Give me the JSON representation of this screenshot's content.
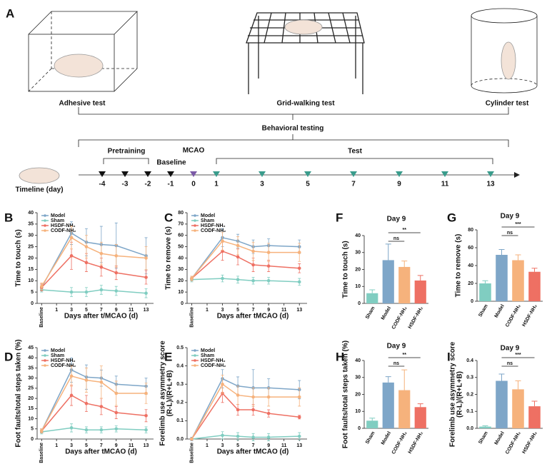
{
  "panel_a": {
    "label": "A",
    "tests": [
      "Adhesive test",
      "Grid-walking test",
      "Cylinder test"
    ],
    "behavioral": "Behavioral testing",
    "pretraining": "Pretraining",
    "baseline": "Baseline",
    "mcao": "MCAO",
    "test": "Test",
    "timeline_label": "Timeline (day)",
    "days": [
      -4,
      -3,
      -2,
      -1,
      0,
      1,
      3,
      5,
      7,
      9,
      11,
      13
    ]
  },
  "chart_data": [
    {
      "type": "line",
      "panel": "B",
      "ylabel": [
        "Time to touch (s)"
      ],
      "xlabel": "Days after t/MCAO (d)",
      "legend": "upper left",
      "x": [
        -1,
        3,
        5,
        7,
        9,
        13
      ],
      "xlim": [
        -1.6,
        14
      ],
      "xticks": [
        {
          "value": -1,
          "label": "Baseline"
        },
        1,
        3,
        5,
        7,
        9,
        11,
        13
      ],
      "ylim": [
        0,
        40
      ],
      "yticks": [
        0,
        5,
        10,
        15,
        20,
        25,
        30,
        35,
        40
      ],
      "series": [
        {
          "name": "Model",
          "color": "#7ea6c8",
          "values": [
            7,
            31,
            27,
            26,
            25.5,
            21
          ],
          "errors": [
            1.5,
            5,
            6,
            8,
            10,
            8
          ]
        },
        {
          "name": "Sham",
          "color": "#80cdc1",
          "values": [
            6,
            5,
            5,
            6,
            5.5,
            4.5
          ],
          "errors": [
            1,
            2,
            2,
            2,
            2,
            2
          ]
        },
        {
          "name": "HSDF-NH₂",
          "color": "#ee7063",
          "values": [
            7,
            21,
            18,
            16,
            13.5,
            11.5
          ],
          "errors": [
            1.5,
            6,
            4,
            4,
            3,
            3
          ]
        },
        {
          "name": "CODF-NH₂",
          "color": "#f6b27c",
          "values": [
            7.5,
            29,
            25,
            22,
            21,
            20
          ],
          "errors": [
            1.5,
            5,
            5,
            5,
            5,
            5
          ]
        }
      ]
    },
    {
      "type": "line",
      "panel": "C",
      "ylabel": [
        "Time to remove (s)"
      ],
      "xlabel": "Days after tMCAO (d)",
      "legend": "upper left",
      "x": [
        -1,
        3,
        5,
        7,
        9,
        13
      ],
      "xlim": [
        -1.6,
        14
      ],
      "xticks": [
        {
          "value": -1,
          "label": "Baseline"
        },
        1,
        3,
        5,
        7,
        9,
        11,
        13
      ],
      "ylim": [
        0,
        80
      ],
      "yticks": [
        0,
        10,
        20,
        30,
        40,
        50,
        60,
        70,
        80
      ],
      "series": [
        {
          "name": "Model",
          "color": "#7ea6c8",
          "values": [
            22,
            58,
            55,
            50,
            51,
            50
          ],
          "errors": [
            2,
            8,
            6,
            6,
            6,
            6
          ]
        },
        {
          "name": "Sham",
          "color": "#80cdc1",
          "values": [
            21,
            22,
            21,
            20,
            20,
            19
          ],
          "errors": [
            2,
            3,
            3,
            3,
            3,
            3
          ]
        },
        {
          "name": "HSDF-NH₂",
          "color": "#ee7063",
          "values": [
            22,
            46,
            41,
            34,
            33,
            31
          ],
          "errors": [
            2,
            8,
            7,
            6,
            5,
            4
          ]
        },
        {
          "name": "CODF-NH₂",
          "color": "#f6b27c",
          "values": [
            22,
            55,
            51,
            46,
            45,
            45
          ],
          "errors": [
            2,
            8,
            8,
            8,
            8,
            8
          ]
        }
      ]
    },
    {
      "type": "line",
      "panel": "D",
      "ylabel": [
        "Foot faults/total steps taken (%)"
      ],
      "xlabel": "Days after tMCAO (d)",
      "legend": "upper left",
      "x": [
        -1,
        3,
        5,
        7,
        9,
        13
      ],
      "xlim": [
        -1.6,
        14
      ],
      "xticks": [
        {
          "value": -1,
          "label": "Baseline"
        },
        1,
        3,
        5,
        7,
        9,
        11,
        13
      ],
      "ylim": [
        0,
        45
      ],
      "yticks": [
        0,
        5,
        10,
        15,
        20,
        25,
        30,
        35,
        40,
        45
      ],
      "series": [
        {
          "name": "Model",
          "color": "#7ea6c8",
          "values": [
            4,
            34,
            30.5,
            30,
            27,
            26
          ],
          "errors": [
            1,
            6,
            6,
            4,
            4,
            4
          ]
        },
        {
          "name": "Sham",
          "color": "#80cdc1",
          "values": [
            3.5,
            5.5,
            4.5,
            4.5,
            5,
            4.5
          ],
          "errors": [
            1,
            2,
            1.5,
            1.5,
            1.5,
            1.5
          ]
        },
        {
          "name": "HSDF-NH₂",
          "color": "#ee7063",
          "values": [
            4,
            21.5,
            17.5,
            16,
            13,
            11.5
          ],
          "errors": [
            1,
            5,
            4,
            4,
            3,
            3
          ]
        },
        {
          "name": "CODF-NH₂",
          "color": "#f6b27c",
          "values": [
            4,
            31,
            29,
            28,
            22.5,
            22.5
          ],
          "errors": [
            1,
            5,
            6,
            8,
            6,
            5
          ]
        }
      ]
    },
    {
      "type": "line",
      "panel": "E",
      "ylabel": [
        "Forelimb use asymmetry score",
        "(R-L)/(R+L+B)"
      ],
      "xlabel": "Days after tMCAO (d)",
      "legend": "upper left",
      "x": [
        -1,
        3,
        5,
        7,
        9,
        13
      ],
      "xlim": [
        -1.6,
        14
      ],
      "xticks": [
        {
          "value": -1,
          "label": "Baseline"
        },
        1,
        3,
        5,
        7,
        9,
        11,
        13
      ],
      "ylim": [
        0,
        0.5
      ],
      "yticks": [
        {
          "value": 0,
          "label": "0.0"
        },
        0.1,
        0.2,
        0.3,
        0.4,
        0.5
      ],
      "series": [
        {
          "name": "Model",
          "color": "#7ea6c8",
          "values": [
            0,
            0.33,
            0.29,
            0.28,
            0.28,
            0.27
          ],
          "errors": [
            0.01,
            0.05,
            0.05,
            0.1,
            0.05,
            0.05
          ]
        },
        {
          "name": "Sham",
          "color": "#80cdc1",
          "values": [
            0,
            0.02,
            0.015,
            0.01,
            0.01,
            0.015
          ],
          "errors": [
            0.005,
            0.02,
            0.02,
            0.02,
            0.02,
            0.02
          ]
        },
        {
          "name": "HSDF-NH₂",
          "color": "#ee7063",
          "values": [
            0,
            0.25,
            0.16,
            0.16,
            0.14,
            0.12
          ],
          "errors": [
            0.005,
            0.05,
            0.03,
            0.03,
            0.02,
            0.01
          ]
        },
        {
          "name": "CODF-NH₂",
          "color": "#f6b27c",
          "values": [
            0,
            0.3,
            0.24,
            0.23,
            0.23,
            0.23
          ],
          "errors": [
            0.005,
            0.05,
            0.05,
            0.05,
            0.05,
            0.05
          ]
        }
      ]
    },
    {
      "type": "bar",
      "panel": "F",
      "title": "Day 9",
      "ylabel": [
        "Time to touch (s)"
      ],
      "categories": [
        "Sham",
        "Model",
        "CODF-NH₂",
        "HSDF-NH₂"
      ],
      "colors": [
        "#80cdc1",
        "#7ea6c8",
        "#f6b27c",
        "#ee7063"
      ],
      "values": [
        6,
        25.5,
        21.5,
        13.5
      ],
      "errors": [
        2,
        9.5,
        3.5,
        3
      ],
      "ylim": [
        0,
        40
      ],
      "yticks": [
        0,
        10,
        20,
        30,
        40
      ],
      "annotations": [
        "ns",
        "**"
      ]
    },
    {
      "type": "bar",
      "panel": "G",
      "title": "Day 9",
      "ylabel": [
        "Time to remove (s)"
      ],
      "categories": [
        "Sham",
        "Model",
        "CODF-NH₂",
        "HSDF-NH₂"
      ],
      "colors": [
        "#80cdc1",
        "#7ea6c8",
        "#f6b27c",
        "#ee7063"
      ],
      "values": [
        20,
        52,
        46,
        33
      ],
      "errors": [
        3,
        6,
        6,
        4
      ],
      "ylim": [
        0,
        80
      ],
      "yticks": [
        0,
        20,
        40,
        60,
        80
      ],
      "annotations": [
        "ns",
        "***"
      ]
    },
    {
      "type": "bar",
      "panel": "H",
      "title": "Day 9",
      "ylabel": [
        "Foot faults/total steps taken (%)"
      ],
      "categories": [
        "Sham",
        "Model",
        "CODF-NH₂",
        "HSDF-NH₂"
      ],
      "colors": [
        "#80cdc1",
        "#7ea6c8",
        "#f6b27c",
        "#ee7063"
      ],
      "values": [
        4.5,
        27,
        22.5,
        12.5
      ],
      "errors": [
        1.5,
        3.5,
        12,
        2
      ],
      "ylim": [
        0,
        40
      ],
      "yticks": [
        0,
        10,
        20,
        30,
        40
      ],
      "annotations": [
        "ns",
        "**"
      ]
    },
    {
      "type": "bar",
      "panel": "I",
      "title": "Day 9",
      "ylabel": [
        "Forelimb use asymmetry score",
        "(R-L)/(R+L+B)"
      ],
      "categories": [
        "Sham",
        "Model",
        "CODF-NH₂",
        "HSDF-NH₂"
      ],
      "colors": [
        "#80cdc1",
        "#7ea6c8",
        "#f6b27c",
        "#ee7063"
      ],
      "values": [
        0.01,
        0.28,
        0.23,
        0.13
      ],
      "errors": [
        0.005,
        0.04,
        0.05,
        0.03
      ],
      "ylim": [
        0,
        0.4
      ],
      "yticks": [
        {
          "value": 0,
          "label": "0.0"
        },
        0.1,
        0.2,
        0.3,
        0.4
      ],
      "annotations": [
        "ns",
        "***"
      ]
    }
  ]
}
